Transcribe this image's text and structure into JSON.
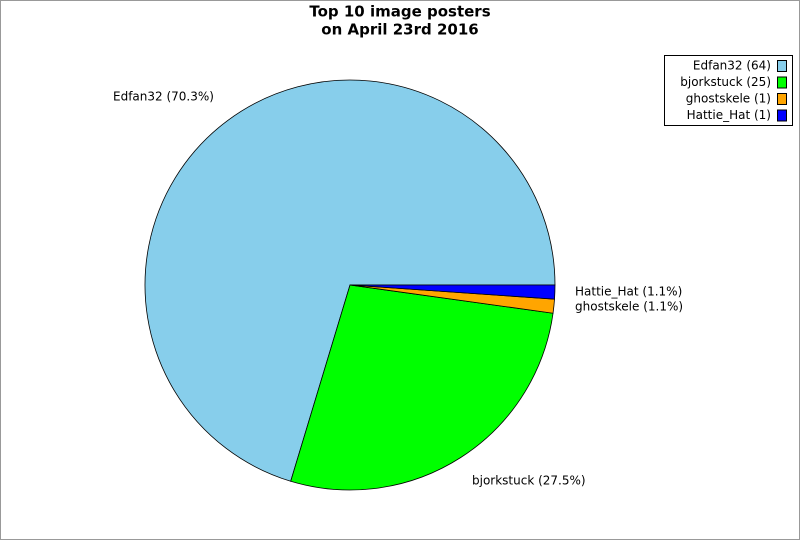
{
  "chart_data": {
    "type": "pie",
    "title": [
      "Top 10 image posters",
      "on April 23rd 2016"
    ],
    "values": [
      64,
      25,
      1,
      1
    ],
    "slice_labels": [
      "Edfan32 (70.3%)",
      "bjorkstuck (27.5%)",
      "ghostskele (1.1%)",
      "Hattie_Hat (1.1%)"
    ],
    "legend_labels": [
      "Edfan32 (64)",
      "bjorkstuck (25)",
      "ghostskele (1)",
      "Hattie_Hat (1)"
    ],
    "colors": [
      "#87ceeb",
      "#00ff00",
      "#ffa500",
      "#0000ff"
    ],
    "legend": "top-right"
  }
}
